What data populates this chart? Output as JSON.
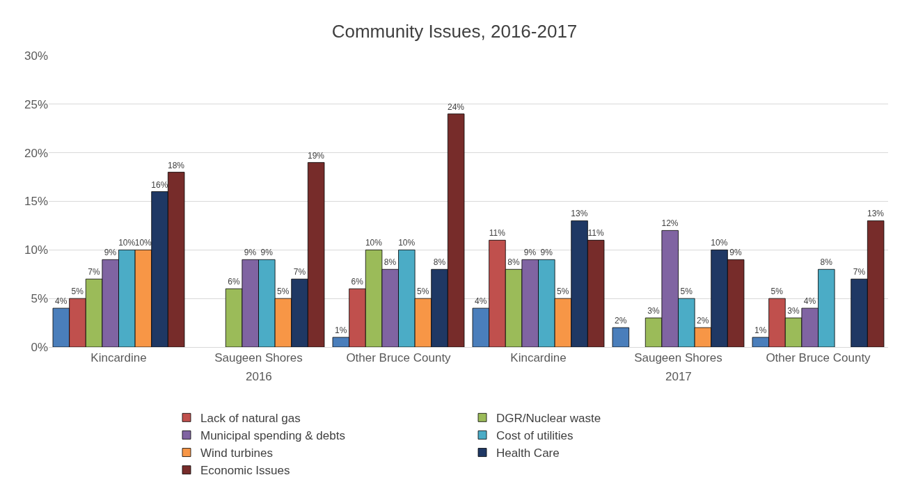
{
  "chart_data": {
    "type": "bar",
    "title": "Community Issues, 2016-2017",
    "categories": [
      "Kincardine",
      "Saugeen Shores",
      "Other Bruce County",
      "Kincardine",
      "Saugeen Shores",
      "Other Bruce County"
    ],
    "annotations": [
      "2016",
      "2017"
    ],
    "ylim": [
      0,
      30
    ],
    "yticks": [
      {
        "value": 0,
        "label": "0%"
      },
      {
        "value": 5,
        "label": "5%"
      },
      {
        "value": 10,
        "label": "10%"
      },
      {
        "value": 15,
        "label": "15%"
      },
      {
        "value": 20,
        "label": "20%"
      },
      {
        "value": 25,
        "label": "25%"
      },
      {
        "value": 30,
        "label": "30%"
      }
    ],
    "grid": "y",
    "legend": "bottom",
    "series": [
      {
        "color": "#4a7ebb",
        "values": [
          4,
          null,
          1,
          4,
          2,
          1
        ],
        "value_labels": [
          "4%",
          null,
          "1%",
          "4%",
          "2%",
          "1%"
        ]
      },
      {
        "name": "Lack of natural gas",
        "color": "#c0504d",
        "values": [
          5,
          null,
          6,
          11,
          null,
          5
        ],
        "value_labels": [
          "5%",
          null,
          "6%",
          "11%",
          null,
          "5%"
        ]
      },
      {
        "name": "DGR/Nuclear waste",
        "color": "#9bbb59",
        "values": [
          7,
          6,
          10,
          8,
          3,
          3
        ],
        "value_labels": [
          "7%",
          "6%",
          "10%",
          "8%",
          "3%",
          "3%"
        ]
      },
      {
        "name": "Municipal spending & debts",
        "color": "#8064a2",
        "values": [
          9,
          9,
          8,
          9,
          12,
          4
        ],
        "value_labels": [
          "9%",
          "9%",
          "8%",
          "9%",
          "12%",
          "4%"
        ]
      },
      {
        "name": "Cost of utilities",
        "color": "#4bacc6",
        "values": [
          10,
          9,
          10,
          9,
          5,
          8
        ],
        "value_labels": [
          "10%",
          "9%",
          "10%",
          "9%",
          "5%",
          "8%"
        ]
      },
      {
        "name": "Wind turbines",
        "color": "#f79646",
        "values": [
          10,
          5,
          5,
          5,
          2,
          null
        ],
        "value_labels": [
          "10%",
          "5%",
          "5%",
          "5%",
          "2%",
          null
        ]
      },
      {
        "name": "Health Care",
        "color": "#1f3864",
        "values": [
          16,
          7,
          8,
          13,
          10,
          7
        ],
        "value_labels": [
          "16%",
          "7%",
          "8%",
          "13%",
          "10%",
          "7%"
        ]
      },
      {
        "name": "Economic Issues",
        "color": "#772c2a",
        "values": [
          18,
          19,
          24,
          11,
          9,
          13
        ],
        "value_labels": [
          "18%",
          "19%",
          "24%",
          "11%",
          "9%",
          "13%"
        ]
      }
    ]
  }
}
